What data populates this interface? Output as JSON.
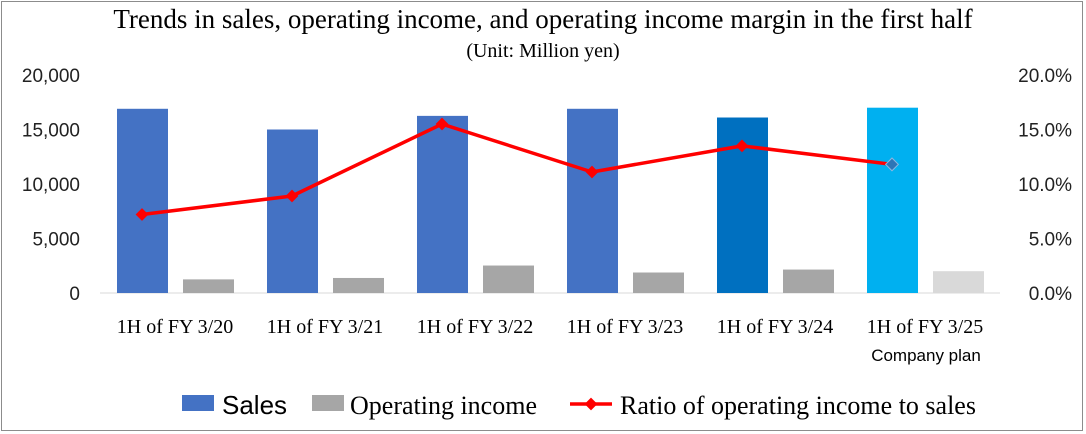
{
  "chart_data": {
    "type": "bar",
    "title": "Trends in sales, operating income, and operating income margin in the first half",
    "subtitle": "(Unit: Million yen)",
    "categories": [
      "1H of FY 3/20",
      "1H of FY 3/21",
      "1H of FY 3/22",
      "1H of FY 3/23",
      "1H of FY 3/24",
      "1H of FY 3/25"
    ],
    "category_notes": [
      "",
      "",
      "",
      "",
      "",
      "Company plan"
    ],
    "series": [
      {
        "name": "Sales",
        "kind": "bar",
        "axis": "left",
        "color": "#4472c4",
        "point_colors": [
          "#4472c4",
          "#4472c4",
          "#4472c4",
          "#4472c4",
          "#0070c0",
          "#00b0f0"
        ],
        "values": [
          16900,
          15000,
          16250,
          16900,
          16100,
          17000
        ]
      },
      {
        "name": "Operating income",
        "kind": "bar",
        "axis": "left",
        "color": "#a6a6a6",
        "point_colors": [
          "#a6a6a6",
          "#a6a6a6",
          "#a6a6a6",
          "#a6a6a6",
          "#a6a6a6",
          "#d9d9d9"
        ],
        "values": [
          1250,
          1380,
          2520,
          1880,
          2150,
          2000
        ]
      },
      {
        "name": "Ratio of operating income to sales",
        "kind": "line",
        "axis": "right",
        "color": "#ff0000",
        "last_point_color": "#2e75b6",
        "values": [
          7.2,
          8.9,
          15.5,
          11.1,
          13.5,
          11.8
        ]
      }
    ],
    "y_left": {
      "min": 0,
      "max": 20000,
      "ticks": [
        "0",
        "5,000",
        "10,000",
        "15,000",
        "20,000"
      ]
    },
    "y_right": {
      "min": 0,
      "max": 20,
      "ticks": [
        "0.0%",
        "5.0%",
        "10.0%",
        "15.0%",
        "20.0%"
      ]
    },
    "grid": false,
    "legend": "bottom"
  }
}
